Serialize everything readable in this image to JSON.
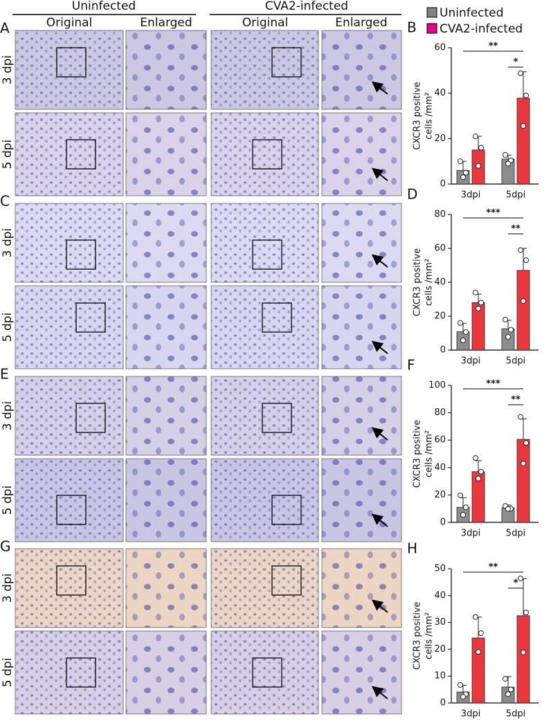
{
  "header": {
    "groups": [
      "Uninfected",
      "CVA2-infected"
    ],
    "columns": [
      "Original",
      "Enlarged",
      "Original",
      "Enlarged"
    ]
  },
  "panels": [
    {
      "letter": "A",
      "rows": [
        "3 dpi",
        "5 dpi"
      ]
    },
    {
      "letter": "C",
      "rows": [
        "3 dpi",
        "5 dpi"
      ]
    },
    {
      "letter": "E",
      "rows": [
        "3 dpi",
        "5 dpi"
      ]
    },
    {
      "letter": "G",
      "rows": [
        "3 dpi",
        "5 dpi"
      ]
    }
  ],
  "legend": [
    {
      "name": "Uninfected",
      "color": "#808080"
    },
    {
      "name": "CVA2-infected",
      "color": "#e5007f"
    }
  ],
  "chart_data": [
    {
      "type": "bar",
      "letter": "B",
      "ylabel": [
        "CXCR3 positive",
        "cells /mm²"
      ],
      "categories": [
        "3dpi",
        "5dpi"
      ],
      "ylim": [
        0,
        60
      ],
      "yticks": [
        0,
        20,
        40,
        60
      ],
      "annotations": [
        "**",
        "*"
      ],
      "series": [
        {
          "color": "#8c8c8c",
          "values": [
            6,
            11
          ],
          "errors": [
            4,
            1.7
          ],
          "points": [
            [
              10,
              5,
              3
            ],
            [
              12.8,
              10.4,
              9
            ]
          ]
        },
        {
          "color": "#e8383d",
          "values": [
            15,
            37.8
          ],
          "errors": [
            6,
            11.6
          ],
          "points": [
            [
              21,
              16,
              8
            ],
            [
              48.8,
              39,
              25.6
            ]
          ]
        }
      ]
    },
    {
      "type": "bar",
      "letter": "D",
      "ylabel": [
        "CXCR3 positive",
        "cells /mm²"
      ],
      "categories": [
        "3dpi",
        "5dpi"
      ],
      "ylim": [
        0,
        80
      ],
      "yticks": [
        0,
        20,
        40,
        60,
        80
      ],
      "annotations": [
        "***",
        "**"
      ],
      "series": [
        {
          "color": "#8c8c8c",
          "values": [
            10.8,
            12.6
          ],
          "errors": [
            5,
            5
          ],
          "points": [
            [
              16,
              10.6,
              5.7
            ],
            [
              18,
              12,
              7.8
            ]
          ]
        },
        {
          "color": "#e8383d",
          "values": [
            28,
            47
          ],
          "errors": [
            5,
            13
          ],
          "points": [
            [
              34,
              28,
              24.5
            ],
            [
              59,
              53,
              29
            ]
          ]
        }
      ]
    },
    {
      "type": "bar",
      "letter": "F",
      "ylabel": [
        "CXCR3 positive",
        "cells /mm²"
      ],
      "categories": [
        "3dpi",
        "5dpi"
      ],
      "ylim": [
        0,
        100
      ],
      "yticks": [
        0,
        20,
        40,
        60,
        80,
        100
      ],
      "annotations": [
        "***",
        "**"
      ],
      "series": [
        {
          "color": "#8c8c8c",
          "values": [
            11,
            10.6
          ],
          "errors": [
            7,
            2
          ],
          "points": [
            [
              19.7,
              11,
              5.5
            ],
            [
              12,
              10,
              9.8
            ]
          ]
        },
        {
          "color": "#e8383d",
          "values": [
            37,
            60.6
          ],
          "errors": [
            8,
            15
          ],
          "points": [
            [
              47,
              37,
              32
            ],
            [
              77,
              58,
              43
            ]
          ]
        }
      ]
    },
    {
      "type": "bar",
      "letter": "H",
      "ylabel": [
        "CXCR3 positive",
        "cells /mm²"
      ],
      "categories": [
        "3dpi",
        "5dpi"
      ],
      "ylim": [
        0,
        50
      ],
      "yticks": [
        0,
        10,
        20,
        30,
        40,
        50
      ],
      "annotations": [
        "**",
        "*"
      ],
      "series": [
        {
          "color": "#8c8c8c",
          "values": [
            4.1,
            5.9
          ],
          "errors": [
            2.5,
            3.9
          ],
          "points": [
            [
              6.7,
              3.3,
              2.3
            ],
            [
              9,
              5,
              3.3
            ]
          ]
        },
        {
          "color": "#e8383d",
          "values": [
            24.2,
            32.5
          ],
          "errors": [
            7.8,
            13.8
          ],
          "points": [
            [
              32,
              26,
              19
            ],
            [
              46.4,
              33.7,
              18.8
            ]
          ]
        }
      ]
    }
  ]
}
